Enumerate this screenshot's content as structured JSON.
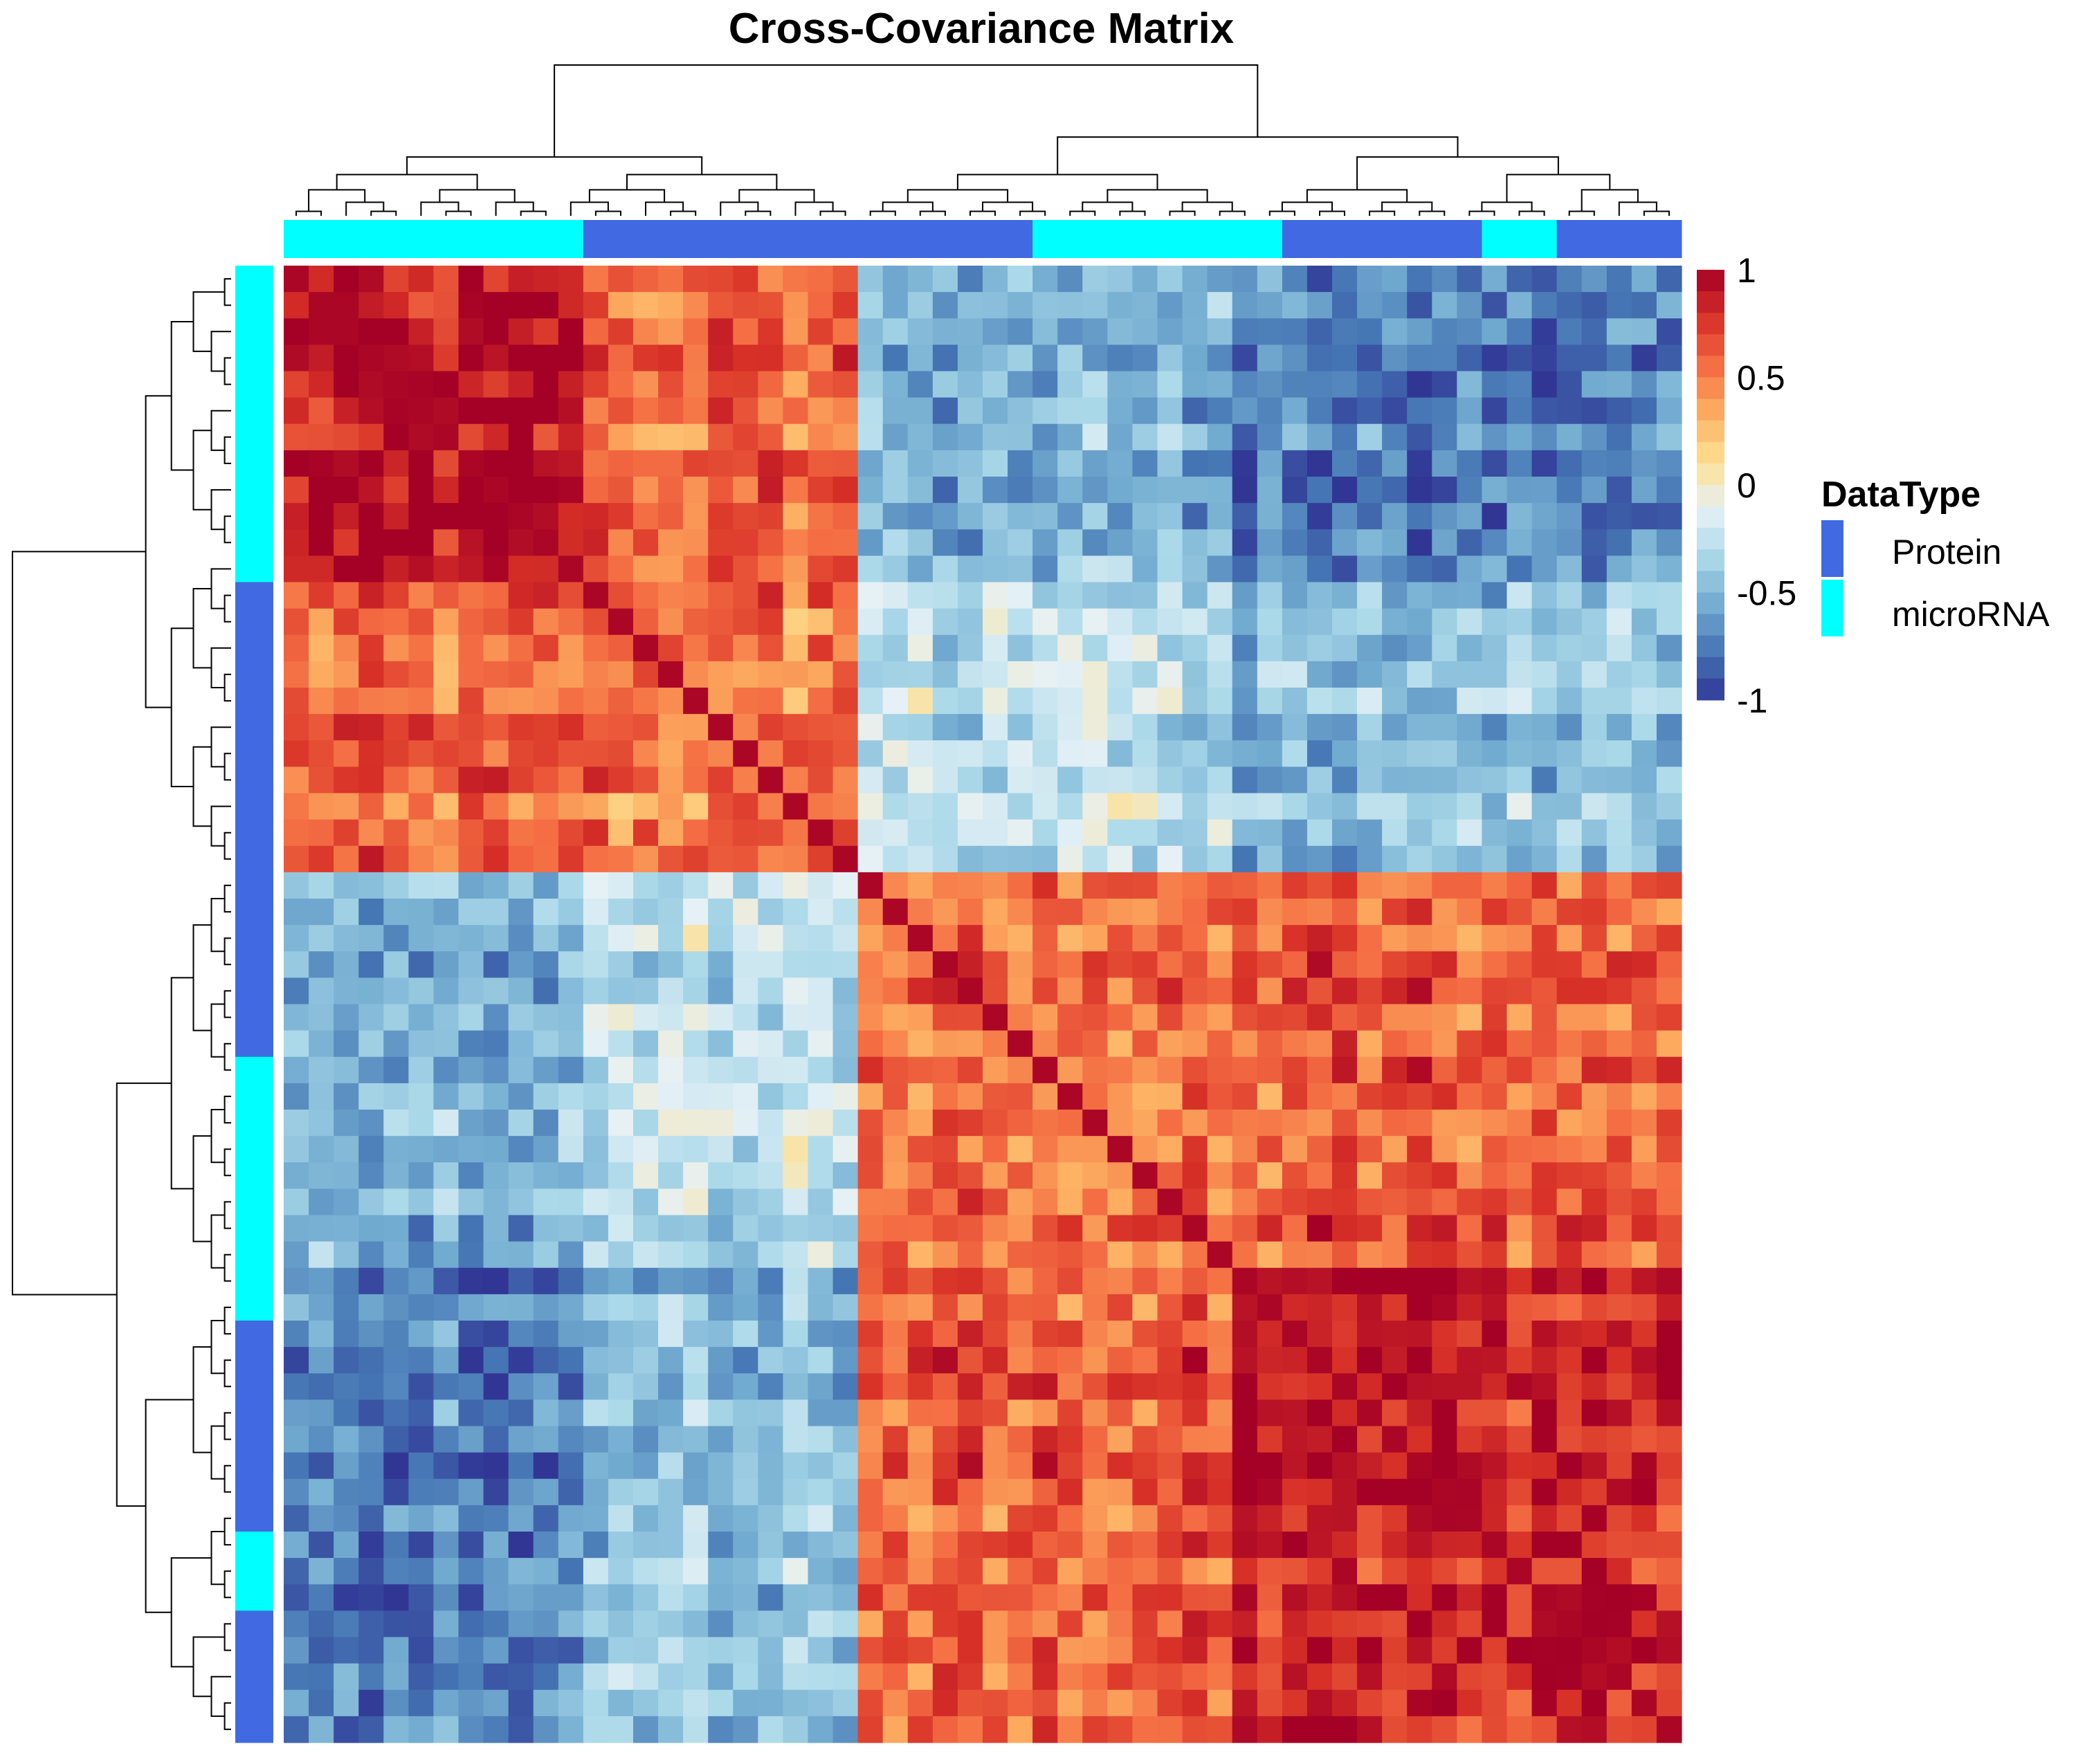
{
  "chart_data": {
    "type": "heatmap",
    "title": "Cross-Covariance Matrix",
    "matrix_size": 56,
    "value_range": [
      -1,
      1
    ],
    "colorbar": {
      "ticks": [
        1,
        0.5,
        0,
        -0.5,
        -1
      ],
      "tick_labels": [
        "1",
        "0.5",
        "0",
        "-0.5",
        "-1"
      ],
      "colors": [
        "#A50026",
        "#D73027",
        "#F46D43",
        "#FDAE61",
        "#FEE090",
        "#E6F1F6",
        "#ABD9E9",
        "#74ADD1",
        "#4575B4",
        "#313695"
      ]
    },
    "annotation_legend": {
      "title": "DataType",
      "entries": [
        {
          "label": "Protein",
          "color": "#4169E1"
        },
        {
          "label": "microRNA",
          "color": "#00FFFF"
        }
      ]
    },
    "datatype_segments": [
      {
        "type": "microRNA",
        "count": 12
      },
      {
        "type": "Protein",
        "count": 11
      },
      {
        "type": "Protein",
        "count": 7
      },
      {
        "type": "microRNA",
        "count": 10
      },
      {
        "type": "Protein",
        "count": 8
      },
      {
        "type": "microRNA",
        "count": 3
      },
      {
        "type": "Protein",
        "count": 5
      }
    ],
    "block_means": [
      [
        0.85,
        0.55,
        -0.5,
        -0.7
      ],
      [
        0.55,
        0.55,
        -0.25,
        -0.45
      ],
      [
        -0.5,
        -0.25,
        0.55,
        0.6
      ],
      [
        -0.7,
        -0.45,
        0.6,
        0.85
      ]
    ],
    "block_sizes": [
      12,
      11,
      15,
      18
    ]
  }
}
